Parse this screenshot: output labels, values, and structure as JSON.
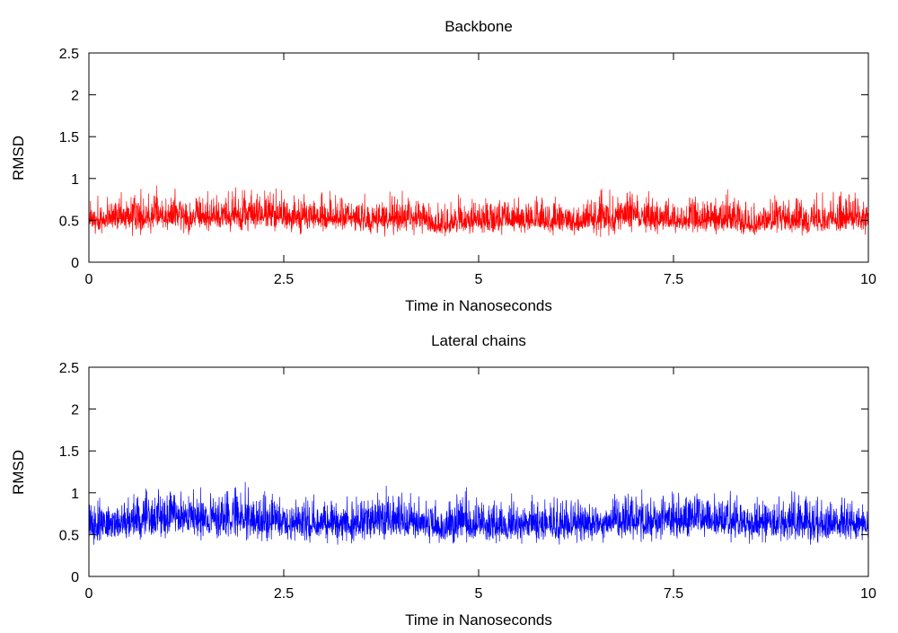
{
  "chart_data": [
    {
      "type": "line",
      "title": "Backbone",
      "xlabel": "Time in Nanoseconds",
      "ylabel": "RMSD",
      "xlim": [
        0,
        10
      ],
      "ylim": [
        0,
        2.5
      ],
      "x_ticks": [
        0,
        2.5,
        5,
        7.5,
        10
      ],
      "x_tick_labels": [
        "0",
        "2.5",
        "5",
        "7.5",
        "10"
      ],
      "y_ticks": [
        0,
        0.5,
        1,
        1.5,
        2,
        2.5
      ],
      "y_tick_labels": [
        "0",
        "0.5",
        "1",
        "1.5",
        "2",
        "2.5"
      ],
      "grid": false,
      "legend": "none",
      "series": [
        {
          "color": "#ff0000",
          "x": [
            0,
            0.25,
            0.5,
            0.75,
            1,
            1.25,
            1.5,
            1.75,
            2,
            2.25,
            2.5,
            2.75,
            3,
            3.25,
            3.5,
            3.75,
            4,
            4.25,
            4.5,
            4.75,
            5,
            5.25,
            5.5,
            5.75,
            6,
            6.25,
            6.5,
            6.75,
            7,
            7.25,
            7.5,
            7.75,
            8,
            8.25,
            8.5,
            8.75,
            9,
            9.25,
            9.5,
            9.75,
            10
          ],
          "values": [
            0.47,
            0.5,
            0.52,
            0.54,
            0.55,
            0.54,
            0.53,
            0.55,
            0.56,
            0.55,
            0.54,
            0.53,
            0.52,
            0.52,
            0.51,
            0.5,
            0.52,
            0.52,
            0.42,
            0.5,
            0.5,
            0.5,
            0.49,
            0.49,
            0.48,
            0.48,
            0.5,
            0.53,
            0.55,
            0.5,
            0.49,
            0.5,
            0.5,
            0.52,
            0.45,
            0.5,
            0.51,
            0.49,
            0.5,
            0.52,
            0.49
          ],
          "band_low": [
            0.35,
            0.38,
            0.4,
            0.4,
            0.42,
            0.4,
            0.4,
            0.42,
            0.42,
            0.42,
            0.4,
            0.4,
            0.4,
            0.4,
            0.38,
            0.38,
            0.4,
            0.4,
            0.32,
            0.38,
            0.38,
            0.38,
            0.38,
            0.37,
            0.36,
            0.36,
            0.38,
            0.4,
            0.42,
            0.38,
            0.37,
            0.38,
            0.38,
            0.4,
            0.34,
            0.38,
            0.38,
            0.37,
            0.38,
            0.4,
            0.37
          ],
          "band_high": [
            0.68,
            0.72,
            0.78,
            0.82,
            0.8,
            0.78,
            0.75,
            0.8,
            0.82,
            0.8,
            0.78,
            0.76,
            0.74,
            0.75,
            0.72,
            0.72,
            0.75,
            0.74,
            0.62,
            0.72,
            0.72,
            0.72,
            0.7,
            0.72,
            0.68,
            0.7,
            0.74,
            0.76,
            0.8,
            0.72,
            0.7,
            0.72,
            0.72,
            0.78,
            0.66,
            0.72,
            0.74,
            0.72,
            0.74,
            0.78,
            0.7
          ]
        }
      ]
    },
    {
      "type": "line",
      "title": "Lateral chains",
      "xlabel": "Time in Nanoseconds",
      "ylabel": "RMSD",
      "xlim": [
        0,
        10
      ],
      "ylim": [
        0,
        2.5
      ],
      "x_ticks": [
        0,
        2.5,
        5,
        7.5,
        10
      ],
      "x_tick_labels": [
        "0",
        "2.5",
        "5",
        "7.5",
        "10"
      ],
      "y_ticks": [
        0,
        0.5,
        1,
        1.5,
        2,
        2.5
      ],
      "y_tick_labels": [
        "0",
        "0.5",
        "1",
        "1.5",
        "2",
        "2.5"
      ],
      "grid": false,
      "legend": "none",
      "series": [
        {
          "color": "#0000ff",
          "x": [
            0,
            0.25,
            0.5,
            0.75,
            1,
            1.25,
            1.5,
            1.75,
            2,
            2.25,
            2.5,
            2.75,
            3,
            3.25,
            3.5,
            3.75,
            4,
            4.25,
            4.5,
            4.75,
            5,
            5.25,
            5.5,
            5.75,
            6,
            6.25,
            6.5,
            6.75,
            7,
            7.25,
            7.5,
            7.75,
            8,
            8.25,
            8.5,
            8.75,
            9,
            9.25,
            9.5,
            9.75,
            10
          ],
          "values": [
            0.6,
            0.62,
            0.66,
            0.68,
            0.66,
            0.68,
            0.66,
            0.67,
            0.68,
            0.66,
            0.64,
            0.63,
            0.62,
            0.63,
            0.64,
            0.66,
            0.66,
            0.65,
            0.55,
            0.64,
            0.62,
            0.62,
            0.61,
            0.62,
            0.6,
            0.62,
            0.62,
            0.64,
            0.66,
            0.64,
            0.66,
            0.68,
            0.66,
            0.63,
            0.6,
            0.62,
            0.64,
            0.62,
            0.62,
            0.64,
            0.62
          ],
          "band_low": [
            0.42,
            0.45,
            0.48,
            0.5,
            0.48,
            0.5,
            0.48,
            0.5,
            0.5,
            0.48,
            0.48,
            0.46,
            0.46,
            0.46,
            0.47,
            0.48,
            0.48,
            0.48,
            0.4,
            0.46,
            0.45,
            0.45,
            0.45,
            0.45,
            0.44,
            0.45,
            0.45,
            0.47,
            0.48,
            0.47,
            0.48,
            0.5,
            0.48,
            0.46,
            0.44,
            0.45,
            0.46,
            0.45,
            0.45,
            0.47,
            0.45
          ],
          "band_high": [
            0.82,
            0.85,
            0.92,
            0.95,
            0.95,
            0.98,
            0.95,
            0.96,
            0.98,
            0.95,
            0.9,
            0.88,
            0.86,
            0.88,
            0.9,
            0.95,
            0.95,
            0.92,
            0.78,
            0.95,
            0.88,
            0.88,
            0.86,
            0.88,
            0.84,
            0.86,
            0.86,
            0.9,
            0.94,
            0.9,
            0.94,
            0.96,
            0.94,
            0.88,
            0.84,
            0.88,
            0.9,
            0.88,
            0.88,
            0.92,
            0.88
          ]
        }
      ]
    }
  ]
}
